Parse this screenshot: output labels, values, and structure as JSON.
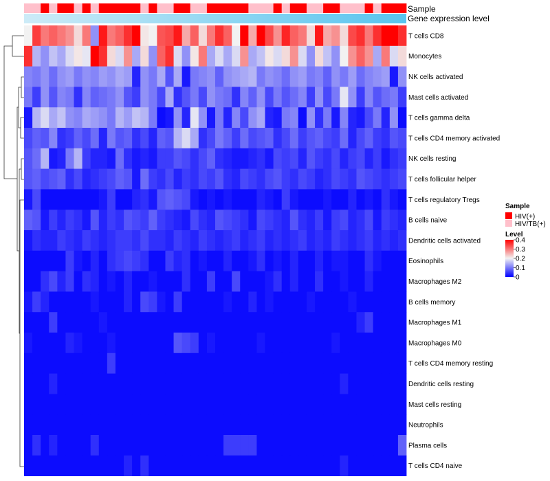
{
  "chart_data": {
    "type": "heatmap",
    "title": "",
    "annotation_rows": [
      {
        "label": "Sample"
      },
      {
        "label": "Gene expression level"
      }
    ],
    "sample_groups": [
      {
        "name": "HIV(+)",
        "color": "#ff0000"
      },
      {
        "name": "HIV/TB(+)",
        "color": "#ffc0cb"
      }
    ],
    "sample_annotation": [
      "HIV/TB(+)",
      "HIV/TB(+)",
      "HIV(+)",
      "HIV/TB(+)",
      "HIV(+)",
      "HIV(+)",
      "HIV/TB(+)",
      "HIV(+)",
      "HIV/TB(+)",
      "HIV(+)",
      "HIV(+)",
      "HIV(+)",
      "HIV(+)",
      "HIV(+)",
      "HIV/TB(+)",
      "HIV(+)",
      "HIV/TB(+)",
      "HIV/TB(+)",
      "HIV(+)",
      "HIV(+)",
      "HIV/TB(+)",
      "HIV/TB(+)",
      "HIV(+)",
      "HIV(+)",
      "HIV(+)",
      "HIV(+)",
      "HIV(+)",
      "HIV/TB(+)",
      "HIV/TB(+)",
      "HIV/TB(+)",
      "HIV(+)",
      "HIV/TB(+)",
      "HIV(+)",
      "HIV(+)",
      "HIV/TB(+)",
      "HIV/TB(+)",
      "HIV(+)",
      "HIV(+)",
      "HIV/TB(+)",
      "HIV/TB(+)",
      "HIV/TB(+)",
      "HIV(+)",
      "HIV/TB(+)",
      "HIV(+)",
      "HIV(+)",
      "HIV(+)"
    ],
    "expression_gradient": {
      "from": "#cdebf7",
      "to": "#58c4ee"
    },
    "rows": [
      "T cells CD8",
      "Monocytes",
      "NK cells activated",
      "Mast cells activated",
      "T cells gamma delta",
      "T cells CD4 memory activated",
      "NK cells resting",
      "T cells follicular helper",
      "T cells regulatory  Tregs",
      "B cells naive",
      "Dendritic cells activated",
      "Eosinophils",
      "Macrophages M2",
      "B cells memory",
      "Macrophages M1",
      "Macrophages M0",
      "T cells CD4 memory resting",
      "Dendritic cells resting",
      "Mast cells resting",
      "Neutrophils",
      "Plasma cells",
      "T cells CD4 naive"
    ],
    "values": [
      [
        0.2,
        0.35,
        0.3,
        0.32,
        0.3,
        0.28,
        0.22,
        0.3,
        0.12,
        0.38,
        0.3,
        0.32,
        0.36,
        0.4,
        0.21,
        0.2,
        0.33,
        0.34,
        0.38,
        0.26,
        0.32,
        0.22,
        0.3,
        0.36,
        0.32,
        0.2,
        0.4,
        0.26,
        0.4,
        0.34,
        0.28,
        0.37,
        0.32,
        0.3,
        0.22,
        0.38,
        0.26,
        0.28,
        0.22,
        0.34,
        0.36,
        0.3,
        0.36,
        0.4,
        0.4,
        0.36
      ],
      [
        0.36,
        0.15,
        0.12,
        0.16,
        0.14,
        0.18,
        0.21,
        0.19,
        0.4,
        0.36,
        0.22,
        0.18,
        0.28,
        0.14,
        0.22,
        0.12,
        0.32,
        0.36,
        0.18,
        0.12,
        0.21,
        0.3,
        0.14,
        0.18,
        0.14,
        0.18,
        0.28,
        0.14,
        0.16,
        0.21,
        0.18,
        0.22,
        0.28,
        0.18,
        0.12,
        0.22,
        0.16,
        0.12,
        0.2,
        0.28,
        0.32,
        0.28,
        0.14,
        0.3,
        0.18,
        0.22
      ],
      [
        0.11,
        0.1,
        0.12,
        0.09,
        0.12,
        0.13,
        0.1,
        0.12,
        0.11,
        0.13,
        0.12,
        0.14,
        0.13,
        0.03,
        0.12,
        0.1,
        0.14,
        0.07,
        0.14,
        0.02,
        0.1,
        0.11,
        0.12,
        0.08,
        0.12,
        0.13,
        0.14,
        0.15,
        0.1,
        0.12,
        0.11,
        0.09,
        0.12,
        0.13,
        0.1,
        0.11,
        0.08,
        0.12,
        0.1,
        0.13,
        0.09,
        0.11,
        0.12,
        0.13,
        0.02,
        0.12
      ],
      [
        0.1,
        0.05,
        0.12,
        0.07,
        0.11,
        0.1,
        0.04,
        0.11,
        0.08,
        0.09,
        0.1,
        0.12,
        0.07,
        0.05,
        0.12,
        0.1,
        0.06,
        0.14,
        0.04,
        0.07,
        0.1,
        0.06,
        0.12,
        0.1,
        0.09,
        0.04,
        0.11,
        0.08,
        0.12,
        0.06,
        0.1,
        0.07,
        0.09,
        0.11,
        0.05,
        0.12,
        0.06,
        0.1,
        0.19,
        0.12,
        0.05,
        0.11,
        0.07,
        0.09,
        0.1,
        0.05
      ],
      [
        0.02,
        0.15,
        0.18,
        0.14,
        0.16,
        0.12,
        0.11,
        0.14,
        0.13,
        0.12,
        0.1,
        0.15,
        0.13,
        0.16,
        0.15,
        0.1,
        0.01,
        0.02,
        0.12,
        0.03,
        0.19,
        0.12,
        0.02,
        0.1,
        0.03,
        0.11,
        0.06,
        0.12,
        0.14,
        0.03,
        0.02,
        0.1,
        0.11,
        0.01,
        0.12,
        0.04,
        0.1,
        0.02,
        0.11,
        0.03,
        0.02,
        0.06,
        0.1,
        0.03,
        0.12,
        0.01
      ],
      [
        0.06,
        0.08,
        0.07,
        0.11,
        0.04,
        0.05,
        0.08,
        0.06,
        0.09,
        0.03,
        0.1,
        0.07,
        0.08,
        0.04,
        0.06,
        0.03,
        0.08,
        0.07,
        0.15,
        0.18,
        0.14,
        0.04,
        0.06,
        0.1,
        0.08,
        0.05,
        0.09,
        0.06,
        0.07,
        0.08,
        0.04,
        0.06,
        0.09,
        0.05,
        0.07,
        0.08,
        0.06,
        0.05,
        0.09,
        0.03,
        0.06,
        0.08,
        0.05,
        0.04,
        0.07,
        0.06
      ],
      [
        0.07,
        0.09,
        0.15,
        0.02,
        0.03,
        0.1,
        0.15,
        0.05,
        0.03,
        0.03,
        0.02,
        0.09,
        0.04,
        0.02,
        0.03,
        0.02,
        0.05,
        0.05,
        0.07,
        0.06,
        0.04,
        0.06,
        0.08,
        0.04,
        0.03,
        0.02,
        0.02,
        0.03,
        0.04,
        0.02,
        0.06,
        0.05,
        0.06,
        0.03,
        0.07,
        0.05,
        0.04,
        0.06,
        0.03,
        0.05,
        0.06,
        0.03,
        0.05,
        0.02,
        0.04,
        0.05
      ],
      [
        0.07,
        0.08,
        0.06,
        0.07,
        0.08,
        0.04,
        0.06,
        0.03,
        0.04,
        0.05,
        0.06,
        0.08,
        0.07,
        0.02,
        0.09,
        0.05,
        0.04,
        0.06,
        0.03,
        0.05,
        0.04,
        0.06,
        0.05,
        0.07,
        0.04,
        0.03,
        0.06,
        0.05,
        0.04,
        0.06,
        0.07,
        0.05,
        0.04,
        0.06,
        0.05,
        0.03,
        0.04,
        0.06,
        0.05,
        0.04,
        0.07,
        0.06,
        0.05,
        0.04,
        0.05,
        0.06
      ],
      [
        0.02,
        0.06,
        0.01,
        0.01,
        0.01,
        0.01,
        0.01,
        0.01,
        0.01,
        0.02,
        0.05,
        0.01,
        0.01,
        0.03,
        0.04,
        0.02,
        0.07,
        0.08,
        0.07,
        0.06,
        0.02,
        0.01,
        0.02,
        0.01,
        0.02,
        0.01,
        0.01,
        0.01,
        0.03,
        0.02,
        0.01,
        0.05,
        0.02,
        0.01,
        0.01,
        0.01,
        0.02,
        0.01,
        0.01,
        0.03,
        0.01,
        0.02,
        0.01,
        0.04,
        0.02,
        0.01
      ],
      [
        0.08,
        0.07,
        0.02,
        0.05,
        0.03,
        0.05,
        0.04,
        0.02,
        0.07,
        0.03,
        0.05,
        0.04,
        0.07,
        0.06,
        0.05,
        0.08,
        0.05,
        0.04,
        0.03,
        0.02,
        0.06,
        0.04,
        0.03,
        0.07,
        0.06,
        0.05,
        0.04,
        0.02,
        0.06,
        0.05,
        0.04,
        0.03,
        0.07,
        0.04,
        0.03,
        0.05,
        0.02,
        0.05,
        0.06,
        0.03,
        0.04,
        0.06,
        0.02,
        0.05,
        0.04,
        0.03
      ],
      [
        0.02,
        0.04,
        0.03,
        0.03,
        0.05,
        0.04,
        0.03,
        0.05,
        0.04,
        0.03,
        0.04,
        0.05,
        0.05,
        0.04,
        0.06,
        0.04,
        0.04,
        0.03,
        0.05,
        0.04,
        0.03,
        0.05,
        0.04,
        0.03,
        0.04,
        0.05,
        0.03,
        0.04,
        0.05,
        0.03,
        0.04,
        0.03,
        0.04,
        0.05,
        0.03,
        0.04,
        0.03,
        0.05,
        0.04,
        0.03,
        0.04,
        0.05,
        0.03,
        0.04,
        0.03,
        0.04
      ],
      [
        0.01,
        0.01,
        0.01,
        0.01,
        0.01,
        0.05,
        0.02,
        0.01,
        0.03,
        0.01,
        0.04,
        0.05,
        0.06,
        0.05,
        0.04,
        0.01,
        0.01,
        0.05,
        0.03,
        0.04,
        0.01,
        0.02,
        0.01,
        0.01,
        0.03,
        0.01,
        0.01,
        0.02,
        0.04,
        0.01,
        0.02,
        0.01,
        0.03,
        0.01,
        0.01,
        0.03,
        0.01,
        0.02,
        0.02,
        0.01,
        0.01,
        0.04,
        0.02,
        0.01,
        0.01,
        0.01
      ],
      [
        0.01,
        0.01,
        0.04,
        0.06,
        0.03,
        0.05,
        0.01,
        0.04,
        0.03,
        0.01,
        0.02,
        0.01,
        0.03,
        0.01,
        0.01,
        0.02,
        0.01,
        0.01,
        0.01,
        0.04,
        0.01,
        0.01,
        0.05,
        0.01,
        0.01,
        0.06,
        0.01,
        0.01,
        0.01,
        0.02,
        0.04,
        0.01,
        0.03,
        0.01,
        0.01,
        0.04,
        0.01,
        0.01,
        0.02,
        0.01,
        0.01,
        0.03,
        0.01,
        0.01,
        0.01,
        0.01
      ],
      [
        0.02,
        0.05,
        0.03,
        0.01,
        0.01,
        0.01,
        0.01,
        0.01,
        0.02,
        0.01,
        0.01,
        0.01,
        0.03,
        0.01,
        0.06,
        0.05,
        0.02,
        0.01,
        0.05,
        0.01,
        0.01,
        0.01,
        0.01,
        0.01,
        0.02,
        0.01,
        0.01,
        0.03,
        0.01,
        0.02,
        0.01,
        0.01,
        0.01,
        0.01,
        0.02,
        0.01,
        0.01,
        0.01,
        0.01,
        0.02,
        0.01,
        0.01,
        0.01,
        0.01,
        0.01,
        0.01
      ],
      [
        0.01,
        0.01,
        0.01,
        0.05,
        0.01,
        0.01,
        0.01,
        0.01,
        0.01,
        0.02,
        0.01,
        0.01,
        0.01,
        0.01,
        0.01,
        0.01,
        0.01,
        0.01,
        0.01,
        0.01,
        0.01,
        0.01,
        0.01,
        0.01,
        0.01,
        0.01,
        0.01,
        0.01,
        0.01,
        0.01,
        0.01,
        0.01,
        0.01,
        0.01,
        0.01,
        0.01,
        0.01,
        0.01,
        0.01,
        0.01,
        0.03,
        0.05,
        0.01,
        0.01,
        0.01,
        0.01
      ],
      [
        0.02,
        0.01,
        0.01,
        0.01,
        0.01,
        0.03,
        0.02,
        0.01,
        0.01,
        0.01,
        0.02,
        0.01,
        0.01,
        0.01,
        0.01,
        0.01,
        0.01,
        0.01,
        0.07,
        0.06,
        0.05,
        0.01,
        0.02,
        0.01,
        0.01,
        0.01,
        0.01,
        0.01,
        0.02,
        0.01,
        0.01,
        0.01,
        0.01,
        0.01,
        0.01,
        0.01,
        0.01,
        0.02,
        0.01,
        0.01,
        0.01,
        0.01,
        0.01,
        0.01,
        0.01,
        0.01
      ],
      [
        0.01,
        0.01,
        0.01,
        0.01,
        0.01,
        0.01,
        0.01,
        0.01,
        0.01,
        0.01,
        0.05,
        0.01,
        0.01,
        0.01,
        0.01,
        0.01,
        0.01,
        0.01,
        0.01,
        0.01,
        0.01,
        0.01,
        0.01,
        0.01,
        0.01,
        0.01,
        0.01,
        0.01,
        0.01,
        0.01,
        0.01,
        0.01,
        0.01,
        0.01,
        0.01,
        0.01,
        0.01,
        0.01,
        0.01,
        0.01,
        0.01,
        0.01,
        0.01,
        0.01,
        0.01,
        0.01
      ],
      [
        0.01,
        0.01,
        0.01,
        0.03,
        0.01,
        0.01,
        0.01,
        0.01,
        0.01,
        0.01,
        0.01,
        0.01,
        0.01,
        0.01,
        0.01,
        0.01,
        0.01,
        0.01,
        0.01,
        0.01,
        0.01,
        0.01,
        0.01,
        0.01,
        0.01,
        0.01,
        0.01,
        0.01,
        0.01,
        0.01,
        0.01,
        0.01,
        0.01,
        0.01,
        0.01,
        0.01,
        0.01,
        0.01,
        0.03,
        0.01,
        0.01,
        0.01,
        0.01,
        0.01,
        0.01,
        0.01
      ],
      [
        0.01,
        0.01,
        0.01,
        0.01,
        0.01,
        0.01,
        0.01,
        0.01,
        0.01,
        0.01,
        0.01,
        0.01,
        0.01,
        0.01,
        0.01,
        0.01,
        0.01,
        0.01,
        0.01,
        0.01,
        0.01,
        0.01,
        0.01,
        0.01,
        0.01,
        0.01,
        0.01,
        0.01,
        0.01,
        0.01,
        0.01,
        0.01,
        0.01,
        0.01,
        0.01,
        0.01,
        0.01,
        0.01,
        0.01,
        0.01,
        0.01,
        0.01,
        0.01,
        0.01,
        0.01,
        0.01
      ],
      [
        0.01,
        0.01,
        0.01,
        0.01,
        0.01,
        0.01,
        0.01,
        0.01,
        0.01,
        0.01,
        0.01,
        0.01,
        0.01,
        0.01,
        0.01,
        0.01,
        0.01,
        0.01,
        0.01,
        0.01,
        0.01,
        0.01,
        0.01,
        0.01,
        0.01,
        0.01,
        0.01,
        0.01,
        0.01,
        0.01,
        0.01,
        0.01,
        0.01,
        0.01,
        0.01,
        0.01,
        0.01,
        0.01,
        0.01,
        0.01,
        0.01,
        0.01,
        0.01,
        0.01,
        0.01,
        0.01
      ],
      [
        0.01,
        0.04,
        0.01,
        0.03,
        0.01,
        0.01,
        0.01,
        0.01,
        0.04,
        0.01,
        0.01,
        0.01,
        0.01,
        0.01,
        0.01,
        0.01,
        0.01,
        0.01,
        0.01,
        0.01,
        0.01,
        0.01,
        0.01,
        0.01,
        0.05,
        0.05,
        0.05,
        0.05,
        0.01,
        0.01,
        0.01,
        0.01,
        0.01,
        0.01,
        0.01,
        0.01,
        0.01,
        0.01,
        0.01,
        0.01,
        0.01,
        0.01,
        0.01,
        0.01,
        0.01,
        0.08
      ],
      [
        0.01,
        0.01,
        0.01,
        0.01,
        0.01,
        0.01,
        0.01,
        0.01,
        0.01,
        0.01,
        0.01,
        0.01,
        0.03,
        0.01,
        0.04,
        0.01,
        0.01,
        0.01,
        0.01,
        0.01,
        0.01,
        0.01,
        0.01,
        0.01,
        0.01,
        0.01,
        0.01,
        0.01,
        0.01,
        0.01,
        0.01,
        0.01,
        0.01,
        0.01,
        0.01,
        0.01,
        0.01,
        0.01,
        0.03,
        0.01,
        0.01,
        0.01,
        0.01,
        0.01,
        0.01,
        0.01
      ]
    ],
    "legend": {
      "sample_title": "Sample",
      "level_title": "Level",
      "level_range": [
        0,
        0.4
      ],
      "level_ticks": [
        0,
        0.1,
        0.2,
        0.3,
        0.4
      ],
      "level_tick_labels": [
        "0",
        "0.1",
        "0.2",
        "0.3",
        "0.4"
      ],
      "colors": {
        "low": "#0000ff",
        "mid": "#f2f2f2",
        "high": "#ff0000"
      }
    }
  }
}
